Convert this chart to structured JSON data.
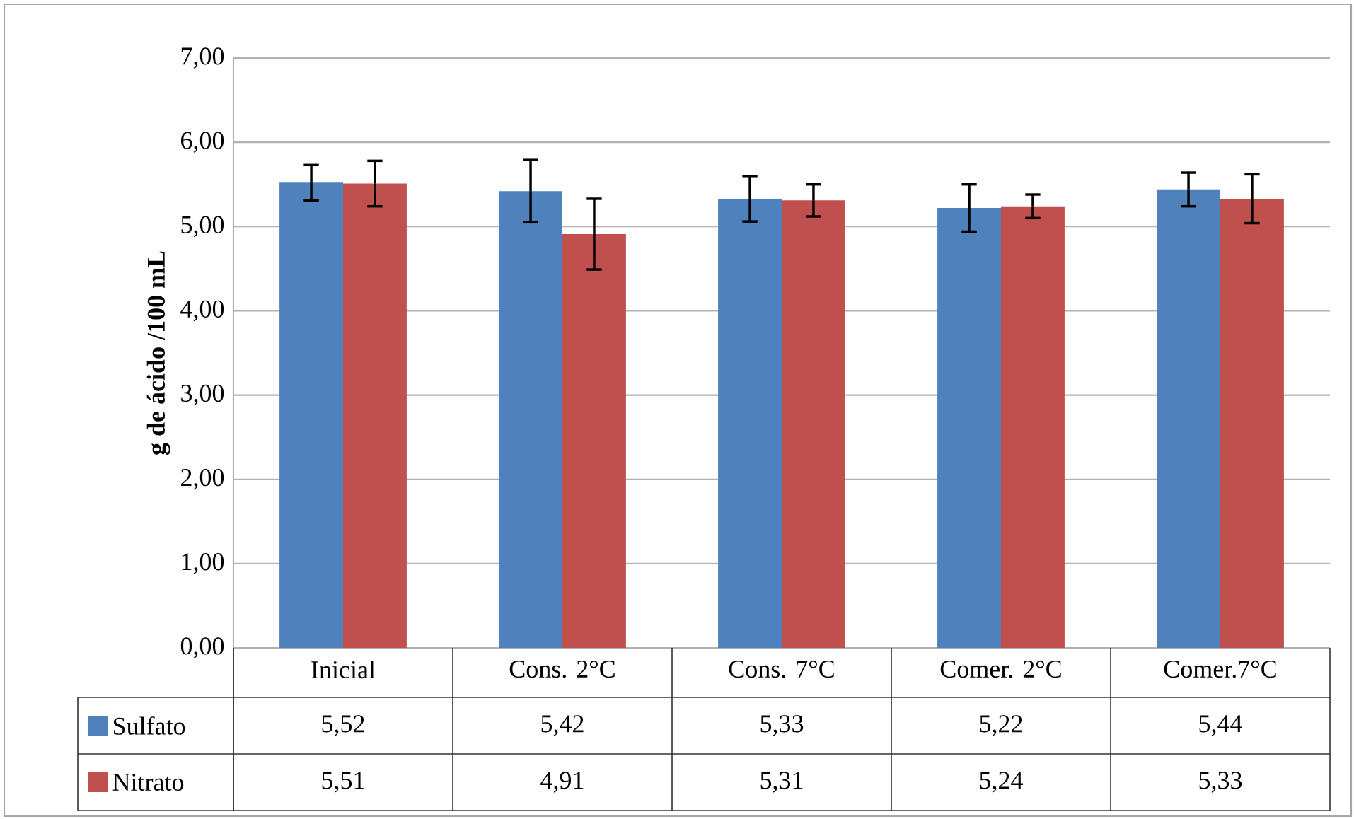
{
  "chart_data": {
    "type": "bar",
    "ylabel": "g de ácido /100 mL",
    "categories": [
      "Inicial",
      "Cons. 2°C",
      "Cons. 7°C",
      "Comer. 2°C",
      "Comer.7°C"
    ],
    "series": [
      {
        "name": "Sulfato",
        "color": "#4f81bd",
        "values": [
          5.52,
          5.42,
          5.33,
          5.22,
          5.44
        ],
        "errors": [
          0.21,
          0.37,
          0.27,
          0.28,
          0.2
        ],
        "value_labels": [
          "5,52",
          "5,42",
          "5,33",
          "5,22",
          "5,44"
        ]
      },
      {
        "name": "Nitrato",
        "color": "#c0504d",
        "values": [
          5.51,
          4.91,
          5.31,
          5.24,
          5.33
        ],
        "errors": [
          0.27,
          0.42,
          0.19,
          0.14,
          0.29
        ],
        "value_labels": [
          "5,51",
          "4,91",
          "5,31",
          "5,24",
          "5,33"
        ]
      }
    ],
    "ylim": [
      0,
      7
    ],
    "yticks": [
      {
        "value": 0,
        "label": "0,00"
      },
      {
        "value": 1,
        "label": "1,00"
      },
      {
        "value": 2,
        "label": "2,00"
      },
      {
        "value": 3,
        "label": "3,00"
      },
      {
        "value": 4,
        "label": "4,00"
      },
      {
        "value": 5,
        "label": "5,00"
      },
      {
        "value": 6,
        "label": "6,00"
      },
      {
        "value": 7,
        "label": "7,00"
      }
    ],
    "grid": "y",
    "legend": "bottom"
  }
}
